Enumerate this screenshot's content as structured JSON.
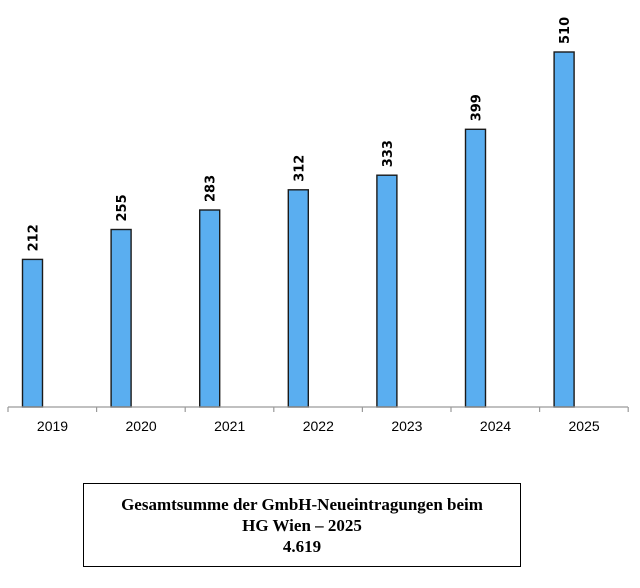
{
  "chart_data": {
    "type": "bar",
    "categories": [
      "2019",
      "2020",
      "2021",
      "2022",
      "2023",
      "2024",
      "2025"
    ],
    "values": [
      212,
      255,
      283,
      312,
      333,
      399,
      510
    ],
    "data_labels": [
      "212",
      "255",
      "283",
      "312",
      "333",
      "399",
      "510"
    ],
    "title": "",
    "xlabel": "",
    "ylabel": "",
    "ylim": [
      0,
      560
    ],
    "grid": false,
    "legend": "none",
    "colors": {
      "bar_fill": "#5aaef0",
      "bar_stroke": "#1a1a1a"
    }
  },
  "summary_box": {
    "line1": "Gesamtsumme der GmbH-Neueintragungen beim",
    "line2": "HG Wien – 2025",
    "total": "4.619"
  }
}
